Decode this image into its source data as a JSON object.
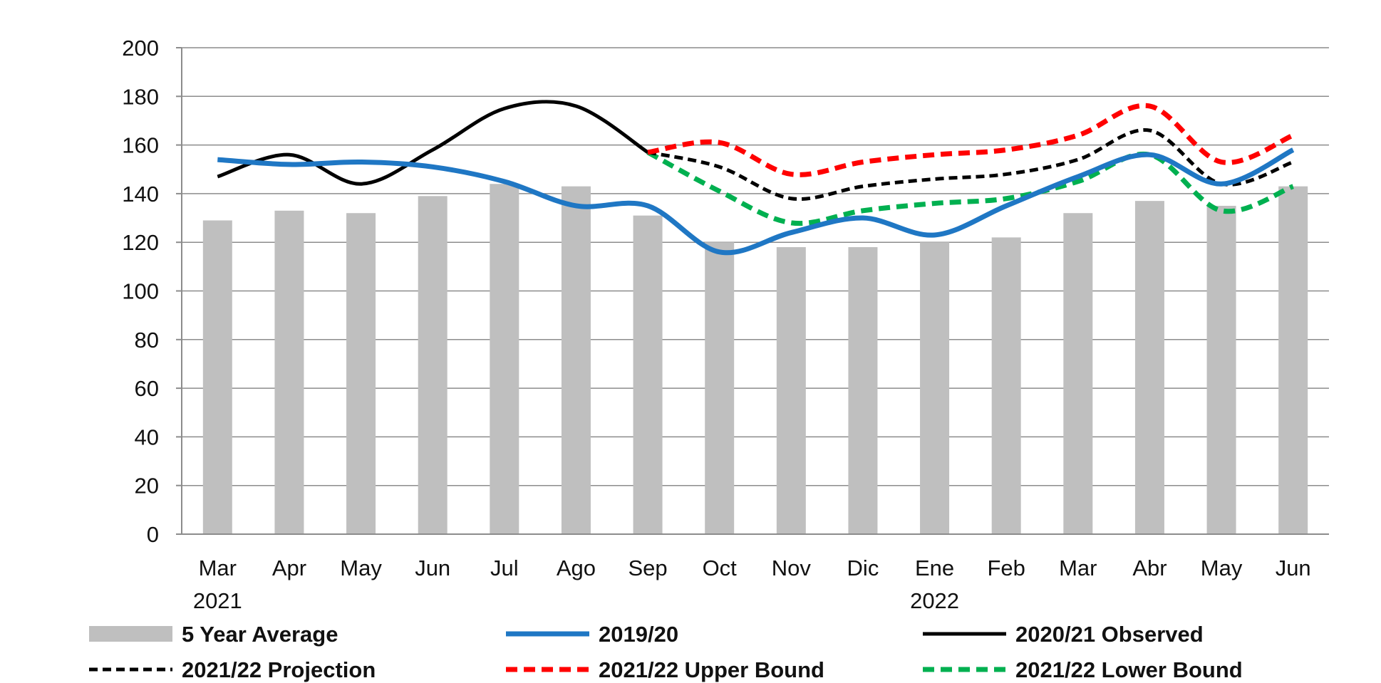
{
  "chart_data": {
    "type": "bar",
    "categories": [
      "Mar",
      "Apr",
      "May",
      "Jun",
      "Jul",
      "Ago",
      "Sep",
      "Oct",
      "Nov",
      "Dic",
      "Ene",
      "Feb",
      "Mar",
      "Abr",
      "May",
      "Jun"
    ],
    "year_labels": [
      {
        "category_index": 0,
        "label": "2021"
      },
      {
        "category_index": 10,
        "label": "2022"
      }
    ],
    "ylim": [
      0,
      200
    ],
    "yticks": [
      0,
      20,
      40,
      60,
      80,
      100,
      120,
      140,
      160,
      180,
      200
    ],
    "grid": true,
    "legend_position": "bottom",
    "series": [
      {
        "name": "5 Year Average",
        "kind": "bar",
        "color": "#bfbfbf",
        "values": [
          129,
          133,
          132,
          139,
          144,
          143,
          131,
          120,
          118,
          118,
          120,
          122,
          132,
          137,
          135,
          143
        ]
      },
      {
        "name": "2019/20",
        "kind": "line",
        "style": "solid",
        "color": "#1f77c4",
        "values": [
          154,
          152,
          153,
          151,
          145,
          135,
          135,
          116,
          124,
          130,
          123,
          135,
          147,
          156,
          144,
          158
        ]
      },
      {
        "name": "2020/21 Observed",
        "kind": "line",
        "style": "solid",
        "color": "#000000",
        "values": [
          147,
          156,
          144,
          158,
          175,
          176,
          157,
          null,
          null,
          null,
          null,
          null,
          null,
          null,
          null,
          null
        ]
      },
      {
        "name": "2021/22 Projection",
        "kind": "line",
        "style": "dashed",
        "color": "#000000",
        "values": [
          null,
          null,
          null,
          null,
          null,
          null,
          157,
          151,
          138,
          143,
          146,
          148,
          154,
          166,
          144,
          153
        ]
      },
      {
        "name": "2021/22 Upper Bound",
        "kind": "line",
        "style": "dashed",
        "color": "#ff0000",
        "values": [
          null,
          null,
          null,
          null,
          null,
          null,
          157,
          161,
          148,
          153,
          156,
          158,
          164,
          176,
          153,
          164
        ]
      },
      {
        "name": "2021/22 Lower Bound",
        "kind": "line",
        "style": "dashed",
        "color": "#00b050",
        "values": [
          null,
          null,
          null,
          null,
          null,
          null,
          157,
          141,
          128,
          133,
          136,
          138,
          145,
          156,
          133,
          143
        ]
      }
    ]
  }
}
